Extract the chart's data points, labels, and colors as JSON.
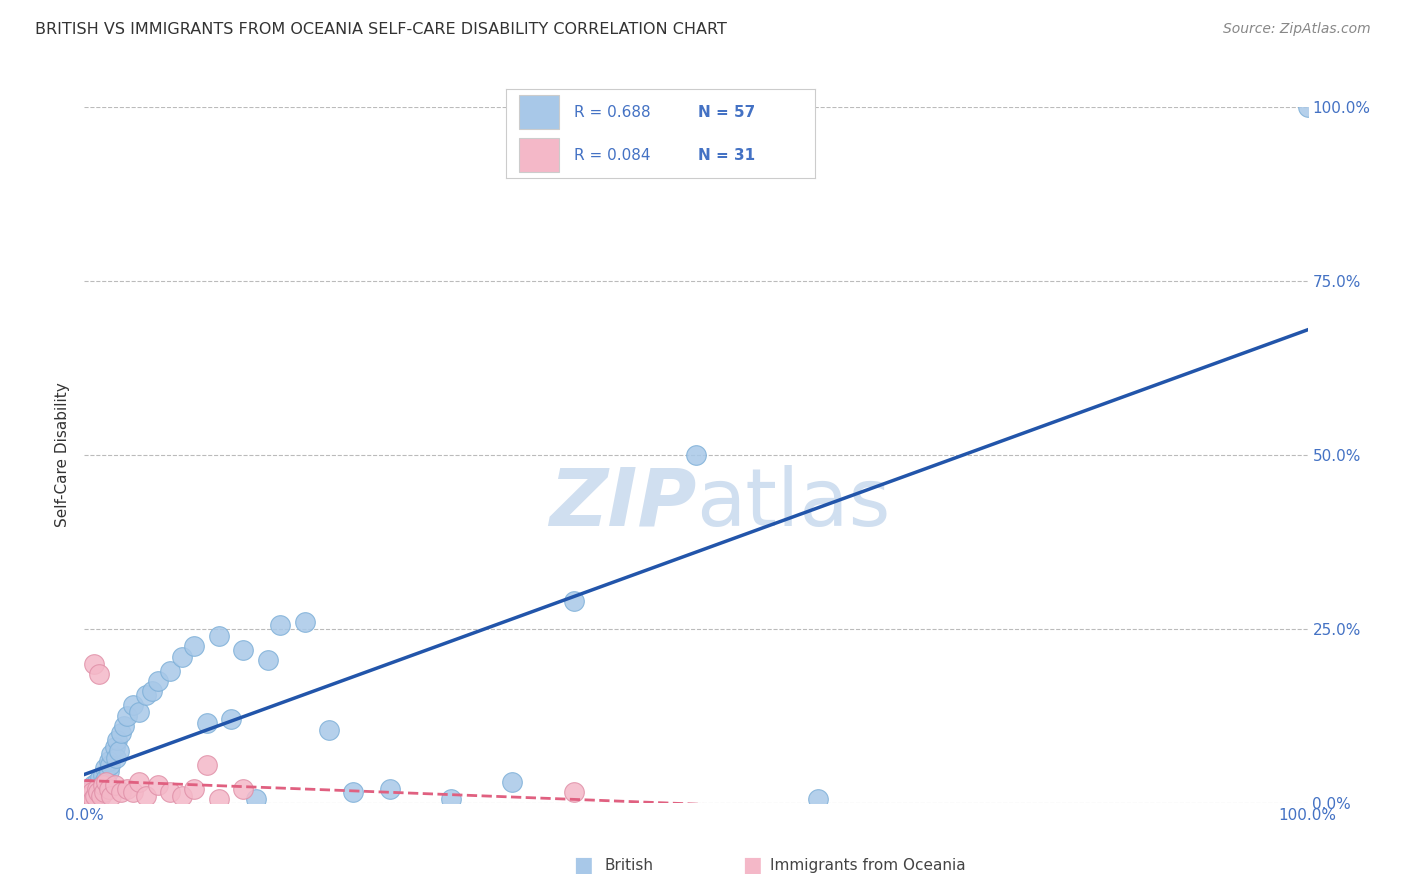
{
  "title": "BRITISH VS IMMIGRANTS FROM OCEANIA SELF-CARE DISABILITY CORRELATION CHART",
  "source": "Source: ZipAtlas.com",
  "ylabel": "Self-Care Disability",
  "ytick_labels": [
    "0.0%",
    "25.0%",
    "50.0%",
    "75.0%",
    "100.0%"
  ],
  "ytick_values": [
    0,
    25,
    50,
    75,
    100
  ],
  "british_R": 0.688,
  "british_N": 57,
  "oceania_R": 0.084,
  "oceania_N": 31,
  "british_color": "#A8C8E8",
  "british_edge_color": "#7EB0D8",
  "british_line_color": "#2255AA",
  "oceania_color": "#F4B8C8",
  "oceania_edge_color": "#E090A8",
  "oceania_line_color": "#E06080",
  "background_color": "#FFFFFF",
  "grid_color": "#BBBBBB",
  "title_color": "#333333",
  "legend_text_color": "#4472C4",
  "axis_label_color": "#4472C4",
  "watermark_color": "#D0DFF0",
  "british_x": [
    0.2,
    0.3,
    0.4,
    0.4,
    0.5,
    0.5,
    0.6,
    0.6,
    0.7,
    0.8,
    0.9,
    1.0,
    1.0,
    1.1,
    1.2,
    1.3,
    1.4,
    1.5,
    1.6,
    1.7,
    1.8,
    2.0,
    2.0,
    2.1,
    2.2,
    2.5,
    2.6,
    2.7,
    2.8,
    3.0,
    3.2,
    3.5,
    4.0,
    4.5,
    5.0,
    5.5,
    6.0,
    7.0,
    8.0,
    9.0,
    10.0,
    11.0,
    12.0,
    13.0,
    14.0,
    15.0,
    16.0,
    18.0,
    20.0,
    22.0,
    25.0,
    30.0,
    35.0,
    40.0,
    50.0,
    60.0,
    100.0
  ],
  "british_y": [
    0.5,
    1.0,
    0.5,
    1.5,
    1.0,
    2.0,
    1.5,
    0.5,
    2.5,
    1.0,
    2.0,
    1.5,
    3.0,
    2.5,
    1.0,
    3.5,
    2.0,
    4.0,
    3.0,
    5.0,
    3.5,
    4.5,
    6.0,
    5.5,
    7.0,
    8.0,
    6.5,
    9.0,
    7.5,
    10.0,
    11.0,
    12.5,
    14.0,
    13.0,
    15.5,
    16.0,
    17.5,
    19.0,
    21.0,
    22.5,
    11.5,
    24.0,
    12.0,
    22.0,
    0.5,
    20.5,
    25.5,
    26.0,
    10.5,
    1.5,
    2.0,
    0.5,
    3.0,
    29.0,
    50.0,
    0.5,
    100.0
  ],
  "oceania_x": [
    0.2,
    0.3,
    0.4,
    0.5,
    0.6,
    0.7,
    0.8,
    0.9,
    1.0,
    1.1,
    1.2,
    1.4,
    1.5,
    1.6,
    1.8,
    2.0,
    2.2,
    2.5,
    3.0,
    3.5,
    4.0,
    4.5,
    5.0,
    6.0,
    7.0,
    8.0,
    9.0,
    10.0,
    11.0,
    13.0,
    40.0
  ],
  "oceania_y": [
    1.0,
    1.5,
    2.0,
    1.0,
    1.5,
    0.5,
    20.0,
    1.0,
    2.0,
    1.5,
    18.5,
    1.0,
    2.5,
    1.5,
    3.0,
    2.0,
    1.0,
    2.5,
    1.5,
    2.0,
    1.5,
    3.0,
    1.0,
    2.5,
    1.5,
    1.0,
    2.0,
    5.5,
    0.5,
    2.0,
    1.5
  ]
}
